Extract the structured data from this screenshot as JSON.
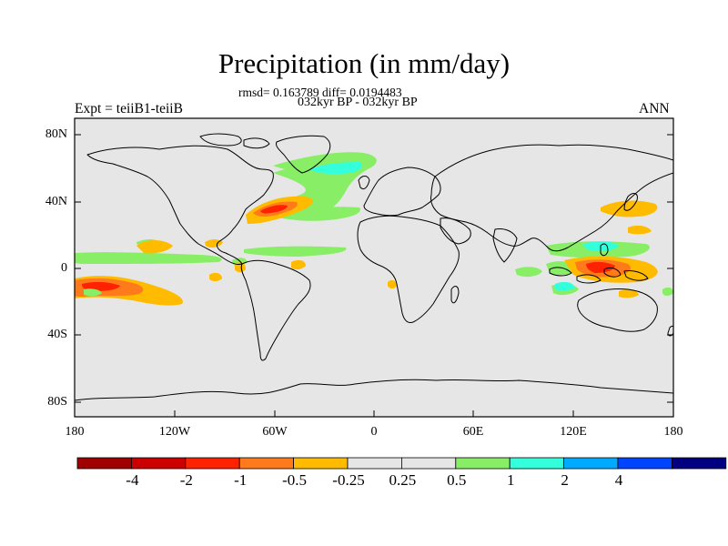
{
  "title": "Precipitation (in mm/day)",
  "stats": "rmsd= 0.163789 diff= 0.0194483",
  "period": "032kyr BP - 032kyr BP",
  "experiment": "Expt = teiiB1-teiiB",
  "season": "ANN",
  "lat_ticks": [
    "80N",
    "40N",
    "0",
    "40S",
    "80S"
  ],
  "lon_ticks": [
    "180",
    "120W",
    "60W",
    "0",
    "60E",
    "120E",
    "180"
  ],
  "colorbar": {
    "colors": [
      "#a00000",
      "#cc0000",
      "#ff2200",
      "#ff7a1a",
      "#ffbb00",
      "#e6e6e6",
      "#e6e6e6",
      "#88ee66",
      "#33ffdd",
      "#00aaff",
      "#0044ff",
      "#000080"
    ],
    "labels": [
      "-4",
      "-2",
      "-1",
      "-0.5",
      "-0.25",
      "0.25",
      "0.5",
      "1",
      "2",
      "4"
    ]
  },
  "background_color": "#e6e6e6"
}
